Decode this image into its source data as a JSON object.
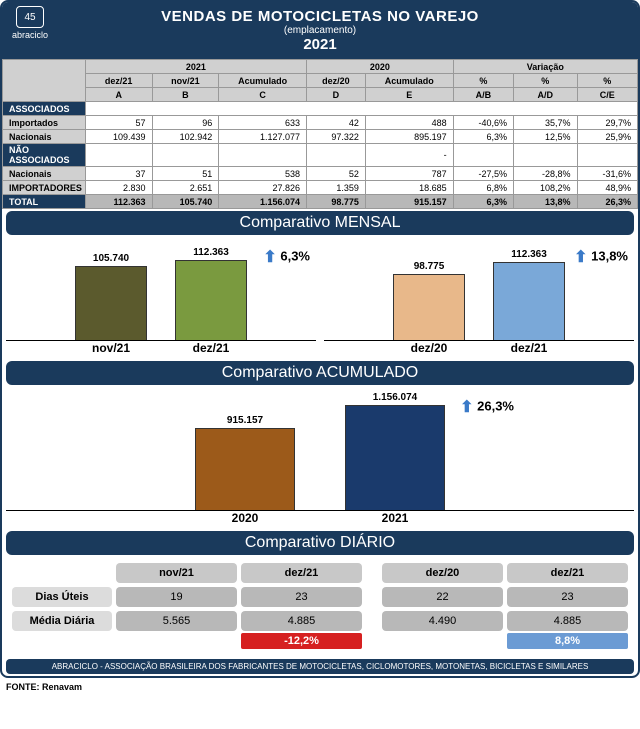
{
  "header": {
    "logo_text": "abraciclo",
    "logo_badge": "45",
    "title": "VENDAS DE MOTOCICLETAS NO VAREJO",
    "subtitle": "(emplacamento)",
    "year": "2021"
  },
  "table": {
    "group_headers": {
      "g2021": "2021",
      "g2020": "2020",
      "gvar": "Variação"
    },
    "sub_headers": {
      "a": "dez/21",
      "b": "nov/21",
      "c": "Acumulado",
      "d": "dez/20",
      "e": "Acumulado",
      "vab": "%",
      "vad": "%",
      "vce": "%"
    },
    "code_headers": {
      "a": "A",
      "b": "B",
      "c": "C",
      "d": "D",
      "e": "E",
      "vab": "A/B",
      "vad": "A/D",
      "vce": "C/E"
    },
    "sections": {
      "associados": "ASSOCIADOS",
      "nao_associados": "NÃO ASSOCIADOS"
    },
    "rows": {
      "importados1": {
        "label": "Importados",
        "a": "57",
        "b": "96",
        "c": "633",
        "d": "42",
        "e": "488",
        "vab": "-40,6%",
        "vad": "35,7%",
        "vce": "29,7%"
      },
      "nacionais1": {
        "label": "Nacionais",
        "a": "109.439",
        "b": "102.942",
        "c": "1.127.077",
        "d": "97.322",
        "e": "895.197",
        "vab": "6,3%",
        "vad": "12,5%",
        "vce": "25,9%"
      },
      "nacionais2": {
        "label": "Nacionais",
        "a": "37",
        "b": "51",
        "c": "538",
        "d": "52",
        "e": "787",
        "vab": "-27,5%",
        "vad": "-28,8%",
        "vce": "-31,6%"
      },
      "importadores": {
        "label": "IMPORTADORES",
        "a": "2.830",
        "b": "2.651",
        "c": "27.826",
        "d": "1.359",
        "e": "18.685",
        "vab": "6,8%",
        "vad": "108,2%",
        "vce": "48,9%"
      },
      "total": {
        "label": "TOTAL",
        "a": "112.363",
        "b": "105.740",
        "c": "1.156.074",
        "d": "98.775",
        "e": "915.157",
        "vab": "6,3%",
        "vad": "13,8%",
        "vce": "26,3%"
      }
    }
  },
  "mensal": {
    "title": "Comparativo MENSAL",
    "chart1": {
      "bars": [
        {
          "label": "nov/21",
          "value": "105.740",
          "height": 74,
          "color": "#5b5a2d"
        },
        {
          "label": "dez/21",
          "value": "112.363",
          "height": 80,
          "color": "#7a9a3f"
        }
      ],
      "pct": "6,3%"
    },
    "chart2": {
      "bars": [
        {
          "label": "dez/20",
          "value": "98.775",
          "height": 66,
          "color": "#e8b88a"
        },
        {
          "label": "dez/21",
          "value": "112.363",
          "height": 78,
          "color": "#7aa8d8"
        }
      ],
      "pct": "13,8%"
    }
  },
  "acumulado": {
    "title": "Comparativo ACUMULADO",
    "chart": {
      "bars": [
        {
          "label": "2020",
          "value": "915.157",
          "height": 82,
          "color": "#9c5a1a"
        },
        {
          "label": "2021",
          "value": "1.156.074",
          "height": 105,
          "color": "#1a3a6c"
        }
      ],
      "pct": "26,3%"
    }
  },
  "diario": {
    "title": "Comparativo DIÁRIO",
    "headers": {
      "h1": "nov/21",
      "h2": "dez/21",
      "h3": "dez/20",
      "h4": "dez/21"
    },
    "rows": {
      "dias": {
        "label": "Dias Úteis",
        "v1": "19",
        "v2": "23",
        "v3": "22",
        "v4": "23"
      },
      "media": {
        "label": "Média Diária",
        "v1": "5.565",
        "v2": "4.885",
        "v3": "4.490",
        "v4": "4.885"
      }
    },
    "pct_left": "-12,2%",
    "pct_right": "8,8%"
  },
  "footer": {
    "bar": "ABRACICLO - ASSOCIAÇÃO BRASILEIRA DOS FABRICANTES DE MOTOCICLETAS, CICLOMOTORES, MOTONETAS, BICICLETAS E SIMILARES",
    "fonte": "FONTE: Renavam"
  },
  "colors": {
    "navy": "#1a3a5c",
    "grey_hdr": "#d0d0d0",
    "grey_total": "#b8b8b8"
  }
}
